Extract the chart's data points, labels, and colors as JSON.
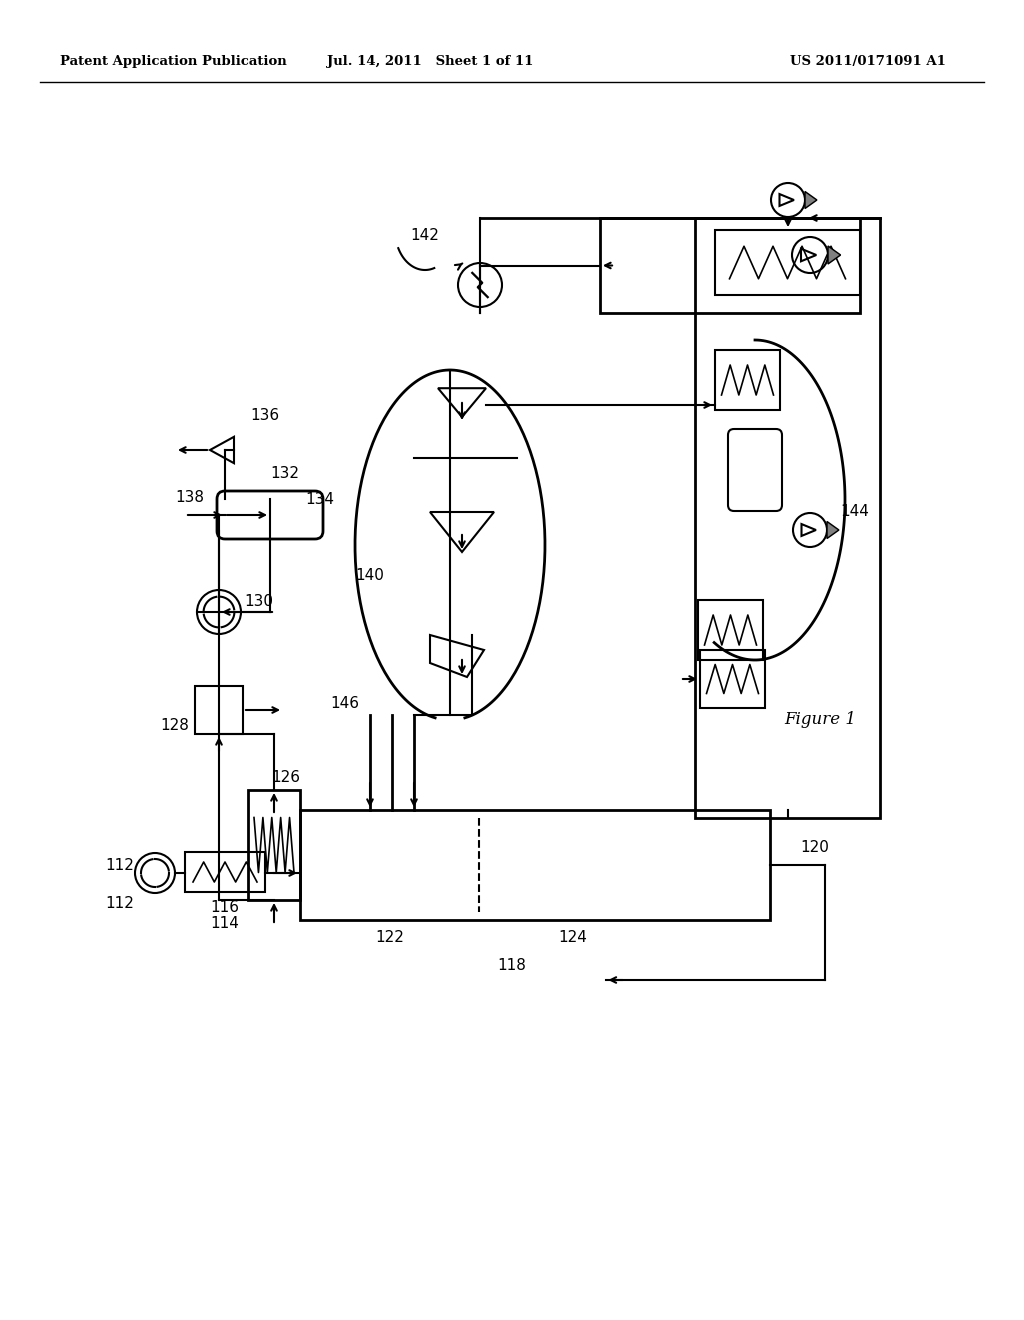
{
  "bg_color": "#ffffff",
  "header_left": "Patent Application Publication",
  "header_mid": "Jul. 14, 2011   Sheet 1 of 11",
  "header_right": "US 2011/0171091 A1",
  "figure_label": "Figure 1"
}
